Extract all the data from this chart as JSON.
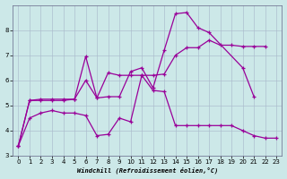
{
  "xlabel": "Windchill (Refroidissement éolien,°C)",
  "bg_color": "#cce8e8",
  "line_color": "#990099",
  "grid_color": "#aabbcc",
  "xlim": [
    -0.5,
    23.5
  ],
  "ylim": [
    3,
    9
  ],
  "yticks": [
    3,
    4,
    5,
    6,
    7,
    8
  ],
  "xticks": [
    0,
    1,
    2,
    3,
    4,
    5,
    6,
    7,
    8,
    9,
    10,
    11,
    12,
    13,
    14,
    15,
    16,
    17,
    18,
    19,
    20,
    21,
    22,
    23
  ],
  "series": [
    {
      "x": [
        0,
        1,
        2,
        3,
        4,
        5,
        6,
        7,
        8,
        9,
        10,
        11,
        12,
        13,
        14,
        15,
        16,
        17,
        18,
        19,
        20,
        21,
        22,
        23
      ],
      "y": [
        3.4,
        4.5,
        4.7,
        4.8,
        4.7,
        4.7,
        4.6,
        3.8,
        3.85,
        4.5,
        4.35,
        6.2,
        5.6,
        5.55,
        4.2,
        4.2,
        4.2,
        4.2,
        4.2,
        4.2,
        4.0,
        3.8,
        3.7,
        3.7
      ]
    },
    {
      "x": [
        0,
        1,
        2,
        3,
        4,
        5,
        6,
        7,
        8,
        9,
        10,
        11,
        12,
        13,
        14,
        15,
        16,
        17,
        18,
        19,
        20,
        21,
        22
      ],
      "y": [
        3.4,
        5.2,
        5.2,
        5.2,
        5.2,
        5.25,
        6.95,
        5.3,
        6.3,
        6.2,
        6.2,
        6.2,
        6.2,
        6.25,
        7.0,
        7.3,
        7.3,
        7.6,
        7.4,
        7.4,
        7.35,
        7.35,
        7.35
      ]
    },
    {
      "x": [
        0,
        1,
        2,
        3,
        4,
        5,
        6,
        7,
        8,
        9,
        10,
        11,
        12,
        13,
        14,
        15,
        16,
        17,
        20,
        21
      ],
      "y": [
        3.4,
        5.2,
        5.25,
        5.25,
        5.25,
        5.25,
        6.0,
        5.3,
        5.35,
        5.35,
        6.35,
        6.5,
        5.7,
        7.2,
        8.65,
        8.7,
        8.1,
        7.9,
        6.5,
        5.35
      ]
    }
  ]
}
